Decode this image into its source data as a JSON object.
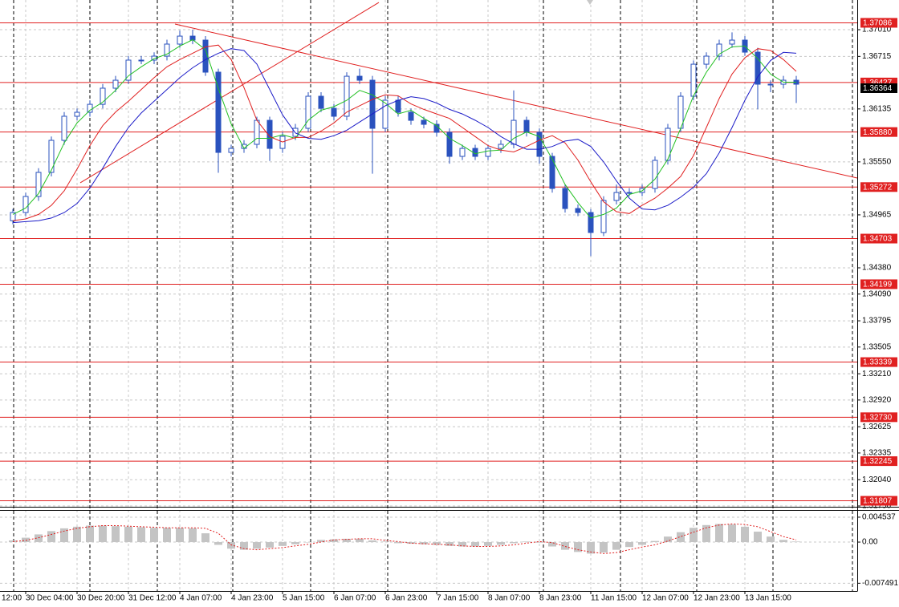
{
  "chart_data": {
    "type": "candlestick",
    "categories": [
      "12:00",
      null,
      null,
      null,
      "30 Dec 04:00",
      null,
      null,
      null,
      "30 Dec 20:00",
      null,
      null,
      null,
      "31 Dec 12:00",
      null,
      null,
      null,
      "4 Jan 07:00",
      null,
      null,
      null,
      "4 Jan 23:00",
      null,
      null,
      null,
      "5 Jan 15:00",
      null,
      null,
      null,
      "6 Jan 07:00",
      null,
      null,
      null,
      "6 Jan 23:00",
      null,
      null,
      null,
      "7 Jan 15:00",
      null,
      null,
      null,
      "8 Jan 07:00",
      null,
      null,
      null,
      "8 Jan 23:00",
      null,
      null,
      null,
      "11 Jan 15:00",
      null,
      null,
      null,
      "12 Jan 07:00",
      null,
      null,
      null,
      "12 Jan 23:00",
      null,
      null,
      null,
      "13 Jan 15:00",
      null,
      null,
      null,
      null
    ],
    "open": [
      null,
      null,
      null,
      1.349,
      1.34991,
      1.35168,
      1.35434,
      1.35788,
      1.36054,
      1.36098,
      1.36186,
      1.36364,
      1.36452,
      1.36674,
      1.36674,
      1.36718,
      1.36851,
      1.36939,
      1.36895,
      1.36541,
      1.35655,
      1.35699,
      1.35744,
      1.36009,
      1.35699,
      1.35832,
      1.35921,
      1.36275,
      1.36142,
      1.36054,
      1.36496,
      1.36452,
      1.35921,
      1.36231,
      1.36098,
      1.36009,
      1.35965,
      1.35877,
      1.35611,
      1.35699,
      1.35611,
      1.35699,
      1.35744,
      1.36009,
      1.35877,
      1.35611,
      1.35257,
      1.35035,
      1.34991,
      1.3477,
      1.35124,
      1.35212,
      1.35212,
      1.35257,
      1.35567,
      1.35921,
      1.36275,
      1.36629,
      1.36718,
      1.36851,
      1.36895,
      1.36762,
      1.36408,
      1.36408,
      1.36452
    ],
    "high": [
      null,
      null,
      null,
      1.3503,
      1.3521,
      1.3548,
      1.3583,
      1.361,
      1.3614,
      1.3623,
      1.3641,
      1.365,
      1.3672,
      1.3672,
      1.3676,
      1.369,
      1.37,
      1.3701,
      1.3694,
      1.3658,
      1.3574,
      1.3579,
      1.3605,
      1.3605,
      1.3588,
      1.3597,
      1.3632,
      1.3632,
      1.3619,
      1.3654,
      1.3658,
      1.365,
      1.3628,
      1.3628,
      1.3614,
      1.3605,
      1.3601,
      1.3592,
      1.3574,
      1.3574,
      1.3574,
      1.3579,
      1.3634,
      1.3605,
      1.3592,
      1.3565,
      1.353,
      1.3508,
      1.3503,
      1.3517,
      1.353,
      1.3526,
      1.353,
      1.3561,
      1.3597,
      1.3632,
      1.3667,
      1.3676,
      1.369,
      1.3698,
      1.3694,
      1.3681,
      1.3645,
      1.365,
      1.365
    ],
    "low": [
      null,
      null,
      null,
      1.3486,
      1.3495,
      1.3512,
      1.3539,
      1.3574,
      1.3601,
      1.3605,
      1.3614,
      1.3632,
      1.3641,
      1.3663,
      1.3663,
      1.3667,
      1.3681,
      1.3685,
      1.365,
      1.3543,
      1.3561,
      1.3565,
      1.357,
      1.3556,
      1.3565,
      1.3579,
      1.3588,
      1.361,
      1.3601,
      1.3601,
      1.3641,
      1.3542,
      1.3588,
      1.3605,
      1.3596,
      1.3592,
      1.3583,
      1.3553,
      1.3557,
      1.3557,
      1.3557,
      1.3565,
      1.357,
      1.3583,
      1.3553,
      1.3521,
      1.3499,
      1.3495,
      1.3451,
      1.3473,
      1.3508,
      1.3517,
      1.3517,
      1.3521,
      1.3552,
      1.3588,
      1.3623,
      1.3658,
      1.3667,
      1.3681,
      1.3672,
      1.3613,
      1.3632,
      1.3636,
      1.362
    ],
    "close": [
      null,
      null,
      null,
      1.34991,
      1.35168,
      1.35434,
      1.35788,
      1.36054,
      1.36098,
      1.36186,
      1.36364,
      1.36452,
      1.36674,
      1.36674,
      1.36718,
      1.36851,
      1.36939,
      1.36895,
      1.36541,
      1.35655,
      1.35699,
      1.35744,
      1.36009,
      1.35699,
      1.35832,
      1.35921,
      1.36275,
      1.36142,
      1.36054,
      1.36496,
      1.36452,
      1.35921,
      1.36231,
      1.36098,
      1.36009,
      1.35965,
      1.35877,
      1.35611,
      1.35699,
      1.35611,
      1.35699,
      1.35744,
      1.36009,
      1.35877,
      1.35611,
      1.35257,
      1.35035,
      1.34991,
      1.3477,
      1.35124,
      1.35212,
      1.35212,
      1.35257,
      1.35567,
      1.35921,
      1.36275,
      1.36629,
      1.36718,
      1.36851,
      1.36895,
      1.36762,
      1.36408,
      1.36408,
      1.36452,
      1.36408
    ],
    "candle_color": "#2a52be",
    "lines": [
      {
        "color": "#22c022",
        "values": [
          null,
          null,
          null,
          1.3497,
          1.3504,
          1.352,
          1.3546,
          1.3576,
          1.3598,
          1.3612,
          1.3621,
          1.3634,
          1.365,
          1.366,
          1.3669,
          1.3674,
          1.3683,
          1.369,
          1.3679,
          1.3636,
          1.3597,
          1.357,
          1.3581,
          1.3581,
          1.3585,
          1.3581,
          1.3601,
          1.3612,
          1.3616,
          1.3623,
          1.3634,
          1.3629,
          1.362,
          1.3608,
          1.3612,
          1.3603,
          1.3595,
          1.3581,
          1.3573,
          1.3564,
          1.3567,
          1.3568,
          1.3581,
          1.3588,
          1.3583,
          1.3558,
          1.353,
          1.351,
          1.3493,
          1.3497,
          1.3504,
          1.3519,
          1.3523,
          1.3536,
          1.3558,
          1.3592,
          1.3628,
          1.3654,
          1.3674,
          1.3682,
          1.3683,
          1.3669,
          1.3652,
          1.3643,
          1.3643
        ]
      },
      {
        "color": "#e02020",
        "values": [
          null,
          null,
          null,
          1.349,
          1.3492,
          1.3497,
          1.3507,
          1.3523,
          1.3547,
          1.3573,
          1.3595,
          1.361,
          1.3622,
          1.3635,
          1.3648,
          1.366,
          1.3668,
          1.3675,
          1.3682,
          1.3684,
          1.3668,
          1.3637,
          1.3601,
          1.3583,
          1.3577,
          1.3582,
          1.3582,
          1.3589,
          1.3598,
          1.361,
          1.3617,
          1.3624,
          1.3629,
          1.3628,
          1.3619,
          1.3613,
          1.3608,
          1.3603,
          1.3593,
          1.3583,
          1.3573,
          1.3568,
          1.3566,
          1.3572,
          1.3579,
          1.3584,
          1.3576,
          1.3557,
          1.3533,
          1.3511,
          1.35,
          1.3498,
          1.3507,
          1.3515,
          1.3526,
          1.3539,
          1.3562,
          1.3593,
          1.3625,
          1.3652,
          1.367,
          1.368,
          1.3678,
          1.3668,
          1.3655
        ]
      },
      {
        "color": "#1c1cc8",
        "values": [
          null,
          null,
          null,
          1.3488,
          1.3489,
          1.349,
          1.3493,
          1.3499,
          1.3509,
          1.3526,
          1.3548,
          1.3572,
          1.3593,
          1.3609,
          1.3622,
          1.3635,
          1.3648,
          1.3659,
          1.3668,
          1.3675,
          1.368,
          1.3678,
          1.3663,
          1.3635,
          1.3607,
          1.3587,
          1.3581,
          1.358,
          1.3584,
          1.359,
          1.3599,
          1.3608,
          1.3617,
          1.3623,
          1.3627,
          1.3625,
          1.362,
          1.3613,
          1.3608,
          1.3601,
          1.3593,
          1.3583,
          1.3575,
          1.3569,
          1.3569,
          1.3572,
          1.3578,
          1.358,
          1.3572,
          1.3555,
          1.3534,
          1.3515,
          1.3503,
          1.3502,
          1.3507,
          1.3516,
          1.3527,
          1.3542,
          1.3565,
          1.3593,
          1.3623,
          1.3649,
          1.3667,
          1.3676,
          1.3675
        ]
      }
    ],
    "ylim": [
      1.31741,
      1.37338
    ],
    "yticks": [
      {
        "value": 1.3701,
        "label": "1.37010"
      },
      1.36715,
      1.36135,
      {
        "value": 1.3555,
        "label": "1.35550"
      },
      1.34965,
      {
        "value": 1.3438,
        "label": "1.34380"
      },
      {
        "value": 1.3409,
        "label": "1.34090"
      },
      1.33795,
      1.33505,
      {
        "value": 1.3321,
        "label": "1.33210"
      },
      {
        "value": 1.3292,
        "label": "1.32920"
      },
      1.32625,
      1.32335,
      {
        "value": 1.3204,
        "label": "1.32040"
      },
      {
        "value": 1.3175,
        "label": "1.31750"
      }
    ],
    "grid": true,
    "levels": [
      1.37086,
      1.36427,
      {
        "value": 1.3588,
        "label": "1.35880"
      },
      1.35272,
      1.34703,
      1.34199,
      1.33339,
      {
        "value": 1.3273,
        "label": "1.32730"
      },
      1.32245,
      1.31807
    ],
    "level_color": "#e02020",
    "current_price": 1.36364,
    "trendlines": [
      {
        "x": [
          15.625,
          68.75
        ],
        "values": [
          1.37072,
          1.35372
        ]
      },
      {
        "x": [
          8.25,
          31.5
        ],
        "values": [
          1.35319,
          1.37311
        ]
      }
    ],
    "oscillator": {
      "histogram": [
        null,
        null,
        null,
        0.0003,
        0.0008,
        0.0014,
        0.002,
        0.0025,
        0.0028,
        0.003,
        0.003,
        0.0029,
        0.0028,
        0.0027,
        0.0026,
        0.0026,
        0.0026,
        0.0025,
        0.0016,
        -0.0005,
        -0.0012,
        -0.0014,
        -0.0012,
        -0.001,
        -0.0007,
        -0.0004,
        0,
        0.0004,
        0.0005,
        0.0006,
        0.0006,
        0.0003,
        0.0001,
        -0.0002,
        -0.0003,
        -0.0004,
        -0.0005,
        -0.0007,
        -0.0008,
        -0.0008,
        -0.0007,
        -0.0005,
        -0.0002,
        0.0001,
        -0.0001,
        -0.0008,
        -0.0014,
        -0.0018,
        -0.0021,
        -0.0019,
        -0.0014,
        -0.0009,
        -0.0005,
        0.0002,
        0.001,
        0.0018,
        0.0026,
        0.0031,
        0.0033,
        0.0032,
        0.0028,
        0.0019,
        0.001,
        0.0004,
        0.0001
      ],
      "signal": [
        null,
        null,
        null,
        0.0001,
        0.0003,
        0.0008,
        0.0014,
        0.002,
        0.0025,
        0.0028,
        0.003,
        0.003,
        0.0029,
        0.0028,
        0.0027,
        0.0026,
        0.0026,
        0.0026,
        0.0025,
        0.0016,
        -0.0005,
        -0.0012,
        -0.0014,
        -0.0012,
        -0.001,
        -0.0007,
        -0.0004,
        0,
        0.0004,
        0.0005,
        0.0006,
        0.0006,
        0.0003,
        0.0001,
        -0.0002,
        -0.0003,
        -0.0004,
        -0.0005,
        -0.0007,
        -0.0008,
        -0.0008,
        -0.0007,
        -0.0005,
        -0.0002,
        0.0001,
        -0.0001,
        -0.0008,
        -0.0014,
        -0.0018,
        -0.0021,
        -0.0019,
        -0.0014,
        -0.0009,
        -0.0005,
        0.0002,
        0.001,
        0.0018,
        0.0026,
        0.0031,
        0.0033,
        0.0032,
        0.0028,
        0.0019,
        0.001,
        0.0004
      ],
      "histogram_color": "#c4c4c4",
      "signal_color": "#e02020",
      "ylim": [
        -0.0089,
        0.0057
      ],
      "yticks": [
        0.004537,
        {
          "value": 0,
          "label": "0.00"
        },
        -0.007491
      ]
    }
  }
}
